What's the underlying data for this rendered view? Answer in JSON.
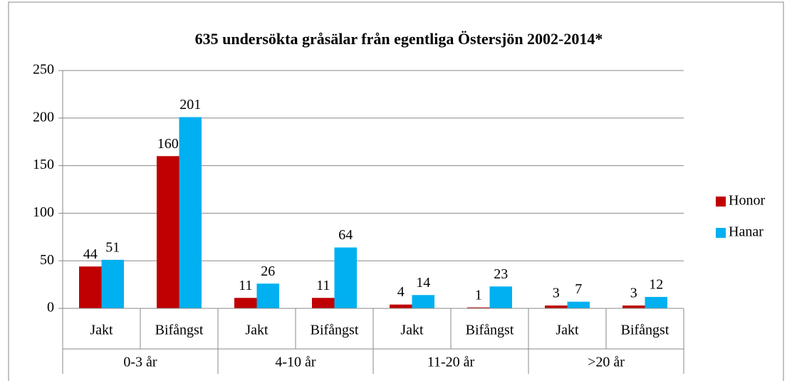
{
  "chart_data": {
    "type": "bar",
    "title": "635 undersökta gråsälar från egentliga Östersjön 2002-2014*",
    "categories": [
      "Jakt",
      "Bifångst",
      "Jakt",
      "Bifångst",
      "Jakt",
      "Bifångst",
      "Jakt",
      "Bifångst"
    ],
    "category_groups": [
      "0-3 år",
      "4-10 år",
      "11-20 år",
      ">20 år"
    ],
    "series": [
      {
        "name": "Honor",
        "color": "#c00000",
        "values": [
          44,
          160,
          11,
          11,
          4,
          1,
          3,
          3
        ]
      },
      {
        "name": "Hanar",
        "color": "#00b0f0",
        "values": [
          51,
          201,
          26,
          64,
          14,
          23,
          7,
          12
        ]
      }
    ],
    "ylim": [
      0,
      250
    ],
    "yticks": [
      0,
      50,
      100,
      150,
      200,
      250
    ],
    "grid": true,
    "legend": "right"
  }
}
